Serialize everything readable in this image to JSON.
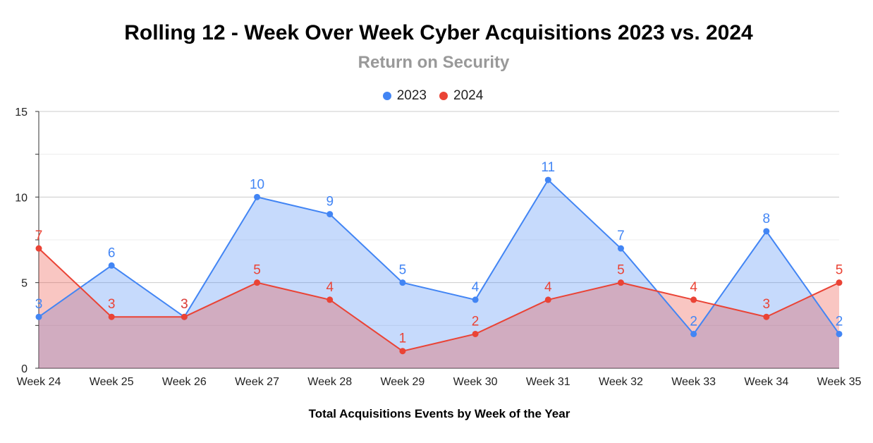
{
  "chart_data": {
    "type": "area",
    "title": "Rolling 12 - Week Over Week Cyber Acquisitions 2023 vs. 2024",
    "subtitle": "Return on Security",
    "xlabel": "Total Acquisitions Events by Week of the Year",
    "ylabel": "",
    "categories": [
      "Week 24",
      "Week 25",
      "Week 26",
      "Week 27",
      "Week 28",
      "Week 29",
      "Week 30",
      "Week 31",
      "Week 32",
      "Week 33",
      "Week 34",
      "Week 35"
    ],
    "series": [
      {
        "name": "2023",
        "color": "#4285f4",
        "values": [
          3,
          6,
          3,
          10,
          9,
          5,
          4,
          11,
          7,
          2,
          8,
          2
        ]
      },
      {
        "name": "2024",
        "color": "#ea4335",
        "values": [
          7,
          3,
          3,
          5,
          4,
          1,
          2,
          4,
          5,
          4,
          3,
          5
        ]
      }
    ],
    "ylim": [
      0,
      15
    ],
    "yticks": [
      0,
      5,
      10,
      15
    ],
    "grid": true,
    "legend": "top",
    "data_labels": true
  }
}
